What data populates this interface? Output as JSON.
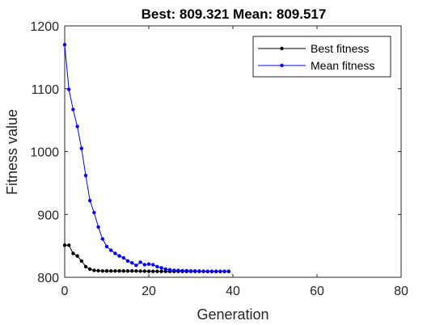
{
  "chart_data": {
    "type": "line",
    "title": "Best: 809.321 Mean: 809.517",
    "xlabel": "Generation",
    "ylabel": "Fitness value",
    "xlim": [
      0,
      80
    ],
    "ylim": [
      800,
      1200
    ],
    "xticks": [
      0,
      20,
      40,
      60,
      80
    ],
    "yticks": [
      800,
      900,
      1000,
      1100,
      1200
    ],
    "grid": false,
    "legend_position": "top-right",
    "series": [
      {
        "name": "Best fitness",
        "color": "#000000",
        "x": [
          0,
          1,
          2,
          3,
          4,
          5,
          6,
          7,
          8,
          9,
          10,
          11,
          12,
          13,
          14,
          15,
          16,
          17,
          18,
          19,
          20,
          21,
          22,
          23,
          24,
          25,
          26,
          27,
          28,
          29,
          30,
          31,
          32,
          33,
          34,
          35,
          36,
          37,
          38,
          39
        ],
        "values": [
          851,
          851,
          838,
          834,
          826,
          817,
          813,
          811,
          810.5,
          810,
          810,
          810,
          810,
          810,
          810,
          810,
          810,
          810,
          809.8,
          809.7,
          809.6,
          809.5,
          809.5,
          809.4,
          809.4,
          809.4,
          809.4,
          809.4,
          809.4,
          809.4,
          809.4,
          809.4,
          809.4,
          809.4,
          809.3,
          809.3,
          809.3,
          809.3,
          809.3,
          809.321
        ]
      },
      {
        "name": "Mean fitness",
        "color": "#0000ff",
        "x": [
          0,
          1,
          2,
          3,
          4,
          5,
          6,
          7,
          8,
          9,
          10,
          11,
          12,
          13,
          14,
          15,
          16,
          17,
          18,
          19,
          20,
          21,
          22,
          23,
          24,
          25,
          26,
          27,
          28,
          29,
          30,
          31,
          32,
          33,
          34,
          35,
          36,
          37,
          38,
          39
        ],
        "values": [
          1170,
          1099,
          1067,
          1040,
          1005,
          962,
          922,
          903,
          880,
          861,
          849,
          843,
          838,
          834,
          831,
          826,
          823,
          819,
          824,
          820,
          821,
          820,
          817,
          815,
          813,
          812,
          811,
          811,
          810.5,
          810.5,
          810,
          810,
          809.8,
          809.7,
          809.6,
          809.6,
          809.6,
          809.5,
          809.5,
          809.517
        ]
      }
    ]
  }
}
